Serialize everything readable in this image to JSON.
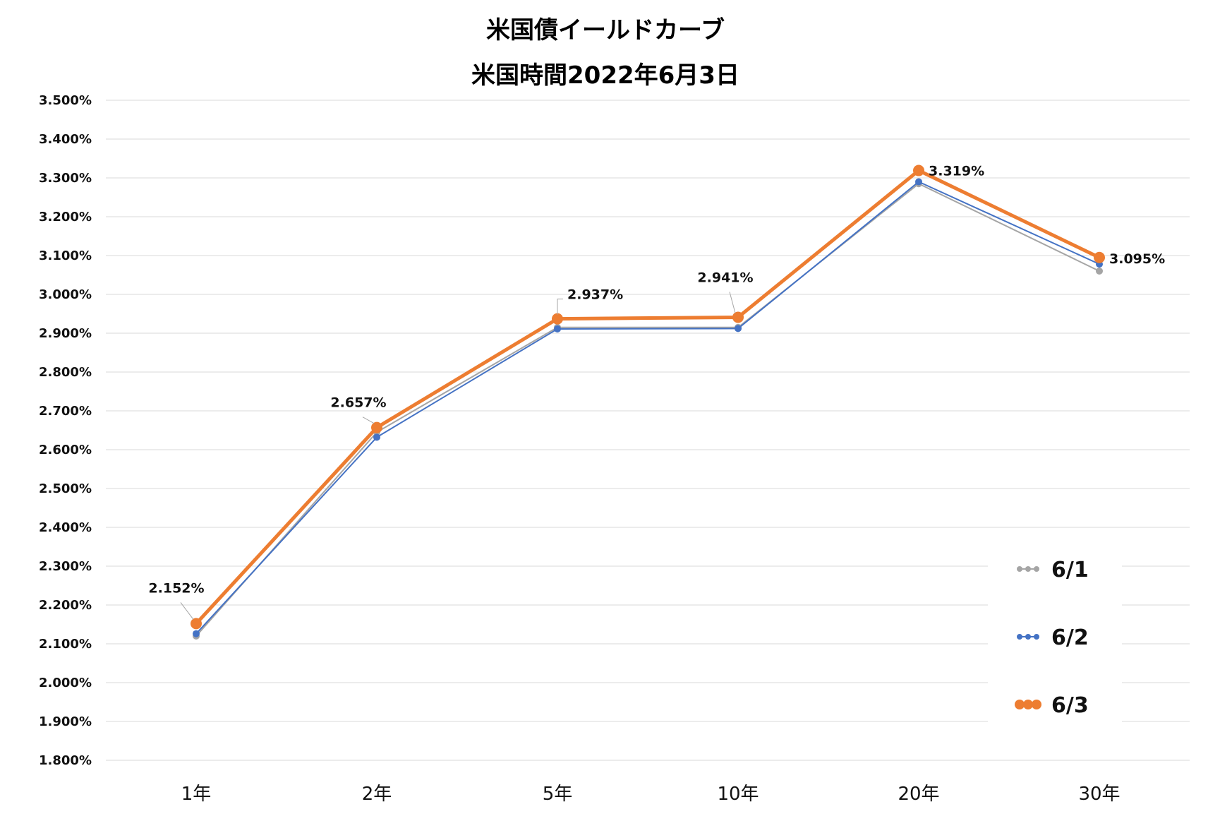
{
  "chart_data": {
    "type": "line",
    "title": "米国債イールドカーブ",
    "subtitle": "米国時間2022年6月3日",
    "categories": [
      "1年",
      "2年",
      "5年",
      "10年",
      "20年",
      "30年"
    ],
    "ylim": [
      1.8,
      3.5
    ],
    "ytick_step": 0.1,
    "ytick_labels": [
      "1.800%",
      "1.900%",
      "2.000%",
      "2.100%",
      "2.200%",
      "2.300%",
      "2.400%",
      "2.500%",
      "2.600%",
      "2.700%",
      "2.800%",
      "2.900%",
      "3.000%",
      "3.100%",
      "3.200%",
      "3.300%",
      "3.400%",
      "3.500%"
    ],
    "grid": true,
    "legend_position": "bottom-right",
    "series": [
      {
        "name": "6/1",
        "color": "#a5a5a5",
        "values": [
          2.12,
          2.645,
          2.915,
          2.915,
          3.285,
          3.06
        ]
      },
      {
        "name": "6/2",
        "color": "#4472c4",
        "values": [
          2.126,
          2.632,
          2.911,
          2.912,
          3.29,
          3.078
        ]
      },
      {
        "name": "6/3",
        "color": "#ed7d31",
        "values": [
          2.152,
          2.657,
          2.937,
          2.941,
          3.319,
          3.095
        ]
      }
    ],
    "data_labels": {
      "series": "6/3",
      "labels": [
        "2.152%",
        "2.657%",
        "2.937%",
        "2.941%",
        "3.319%",
        "3.095%"
      ]
    }
  }
}
